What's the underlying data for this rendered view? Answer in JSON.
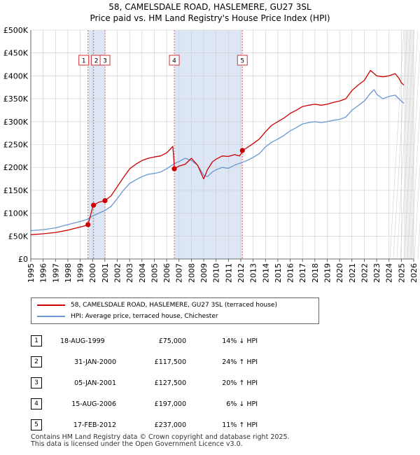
{
  "title_line1": "58, CAMELSDALE ROAD, HASLEMERE, GU27 3SL",
  "title_line2": "Price paid vs. HM Land Registry's House Price Index (HPI)",
  "colors": {
    "property": "#cc0000",
    "hpi": "#6a97d0",
    "shade": "#dde6f5",
    "grid": "#cccccc",
    "marker_line": "#e06a6a"
  },
  "legend": {
    "property_label": "58, CAMELSDALE ROAD, HASLEMERE, GU27 3SL (terraced house)",
    "hpi_label": "HPI: Average price, terraced house, Chichester"
  },
  "sales": [
    {
      "num": "1",
      "date": "18-AUG-1999",
      "price": "£75,000",
      "hpi_diff": "14% ↓ HPI",
      "t": 1999.63,
      "v": 75000
    },
    {
      "num": "2",
      "date": "31-JAN-2000",
      "price": "£117,500",
      "hpi_diff": "24% ↑ HPI",
      "t": 2000.08,
      "v": 117500
    },
    {
      "num": "3",
      "date": "05-JAN-2001",
      "price": "£127,500",
      "hpi_diff": "20% ↑ HPI",
      "t": 2001.01,
      "v": 127500
    },
    {
      "num": "4",
      "date": "15-AUG-2006",
      "price": "£197,000",
      "hpi_diff": "6% ↓ HPI",
      "t": 2006.62,
      "v": 197000
    },
    {
      "num": "5",
      "date": "17-FEB-2012",
      "price": "£237,000",
      "hpi_diff": "11% ↑ HPI",
      "t": 2012.13,
      "v": 237000
    }
  ],
  "footer_line1": "Contains HM Land Registry data © Crown copyright and database right 2025.",
  "footer_line2": "This data is licensed under the Open Government Licence v3.0.",
  "chart_data": {
    "type": "line",
    "title": "58, CAMELSDALE ROAD, HASLEMERE, GU27 3SL",
    "subtitle": "Price paid vs. HM Land Registry's House Price Index (HPI)",
    "xlabel": "",
    "ylabel": "",
    "xlim": [
      1995,
      2026
    ],
    "ylim": [
      0,
      500000
    ],
    "y_ticks": [
      0,
      50000,
      100000,
      150000,
      200000,
      250000,
      300000,
      350000,
      400000,
      450000,
      500000
    ],
    "y_tick_labels": [
      "£0",
      "£50K",
      "£100K",
      "£150K",
      "£200K",
      "£250K",
      "£300K",
      "£350K",
      "£400K",
      "£450K",
      "£500K"
    ],
    "x_ticks": [
      1995,
      1996,
      1997,
      1998,
      1999,
      2000,
      2001,
      2002,
      2003,
      2004,
      2005,
      2006,
      2007,
      2008,
      2009,
      2010,
      2011,
      2012,
      2013,
      2014,
      2015,
      2016,
      2017,
      2018,
      2019,
      2020,
      2021,
      2022,
      2023,
      2024,
      2025,
      2026
    ],
    "x_tick_labels": [
      "1995",
      "1996",
      "1997",
      "1998",
      "1999",
      "2000",
      "2001",
      "2002",
      "2003",
      "2004",
      "2005",
      "2006",
      "2007",
      "2008",
      "2009",
      "2010",
      "2011",
      "2012",
      "2013",
      "2014",
      "2015",
      "2016",
      "2017",
      "2018",
      "2019",
      "2020",
      "2021",
      "2022",
      "2023",
      "2024",
      "2025",
      "2026"
    ],
    "grid": true,
    "shaded_ranges": [
      [
        1999.63,
        2001.01
      ],
      [
        2006.62,
        2012.13
      ]
    ],
    "forecast_from": 2025.2,
    "series": [
      {
        "name": "58, CAMELSDALE ROAD, HASLEMERE, GU27 3SL (terraced house)",
        "x": [
          1995.0,
          1996.0,
          1997.0,
          1998.0,
          1999.0,
          1999.6,
          1999.63,
          2000.0,
          2000.08,
          2000.5,
          2001.0,
          2001.01,
          2001.5,
          2002.0,
          2002.5,
          2003.0,
          2003.5,
          2004.0,
          2004.5,
          2005.0,
          2005.5,
          2006.0,
          2006.3,
          2006.5,
          2006.6,
          2006.62,
          2007.0,
          2007.5,
          2008.0,
          2008.5,
          2009.0,
          2009.3,
          2009.7,
          2010.0,
          2010.5,
          2011.0,
          2011.5,
          2011.9,
          2012.1,
          2012.13,
          2012.5,
          2013.0,
          2013.5,
          2014.0,
          2014.5,
          2015.0,
          2015.5,
          2016.0,
          2016.5,
          2017.0,
          2017.5,
          2018.0,
          2018.5,
          2019.0,
          2019.5,
          2020.0,
          2020.5,
          2021.0,
          2021.5,
          2022.0,
          2022.5,
          2022.8,
          2023.0,
          2023.5,
          2024.0,
          2024.5,
          2024.8,
          2025.0,
          2025.2
        ],
        "values": [
          53000,
          55000,
          58000,
          63000,
          70000,
          74000,
          75000,
          112000,
          117500,
          124000,
          127000,
          127500,
          138000,
          158000,
          178000,
          197000,
          207000,
          215000,
          220000,
          223000,
          225000,
          232000,
          240000,
          246000,
          210000,
          197000,
          203000,
          207000,
          220000,
          205000,
          175000,
          195000,
          212000,
          218000,
          225000,
          224000,
          228000,
          225000,
          233000,
          237000,
          243000,
          252000,
          262000,
          278000,
          292000,
          300000,
          308000,
          318000,
          325000,
          333000,
          336000,
          338000,
          336000,
          338000,
          342000,
          345000,
          350000,
          368000,
          380000,
          390000,
          412000,
          405000,
          400000,
          398000,
          400000,
          405000,
          395000,
          385000,
          380000
        ]
      },
      {
        "name": "HPI: Average price, terraced house, Chichester",
        "x": [
          1995.0,
          1996.0,
          1997.0,
          1998.0,
          1999.0,
          1999.63,
          2000.0,
          2000.5,
          2001.0,
          2001.5,
          2002.0,
          2002.5,
          2003.0,
          2003.5,
          2004.0,
          2004.5,
          2005.0,
          2005.5,
          2006.0,
          2006.6,
          2007.0,
          2007.5,
          2008.0,
          2008.5,
          2009.0,
          2009.3,
          2009.7,
          2010.0,
          2010.5,
          2011.0,
          2011.5,
          2012.0,
          2012.5,
          2013.0,
          2013.5,
          2014.0,
          2014.5,
          2015.0,
          2015.5,
          2016.0,
          2016.5,
          2017.0,
          2017.5,
          2018.0,
          2018.5,
          2019.0,
          2019.5,
          2020.0,
          2020.5,
          2021.0,
          2021.5,
          2022.0,
          2022.5,
          2022.8,
          2023.0,
          2023.5,
          2024.0,
          2024.5,
          2024.8,
          2025.0,
          2025.2
        ],
        "values": [
          62000,
          64000,
          68000,
          75000,
          82000,
          87000,
          94000,
          100000,
          106000,
          115000,
          132000,
          150000,
          165000,
          173000,
          180000,
          185000,
          187000,
          190000,
          197000,
          208000,
          213000,
          220000,
          215000,
          205000,
          183000,
          180000,
          190000,
          195000,
          200000,
          198000,
          205000,
          210000,
          215000,
          222000,
          230000,
          245000,
          255000,
          262000,
          270000,
          280000,
          287000,
          295000,
          298000,
          300000,
          298000,
          300000,
          303000,
          305000,
          310000,
          325000,
          335000,
          345000,
          362000,
          370000,
          360000,
          350000,
          355000,
          358000,
          350000,
          345000,
          340000
        ]
      }
    ]
  }
}
